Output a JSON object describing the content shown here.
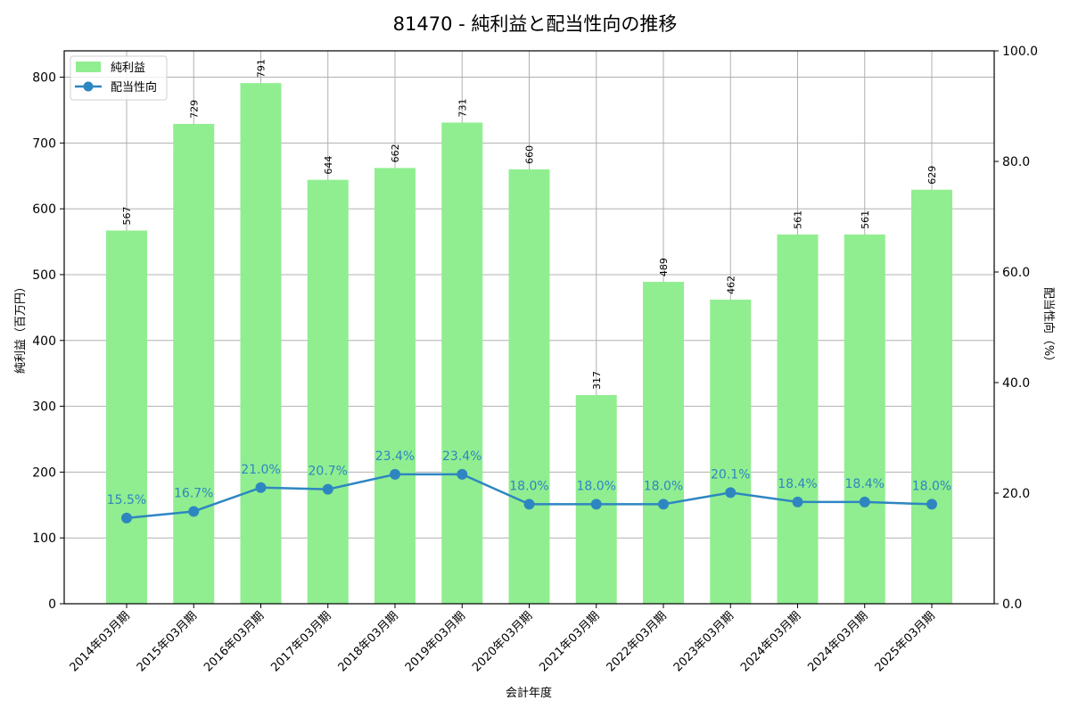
{
  "title": "81470 - 純利益と配当性向の推移",
  "colors": {
    "bar": "#90ee90",
    "line": "#2e86c1",
    "grid": "#b0b0b0",
    "axis": "#000000",
    "text": "#000000"
  },
  "legend": {
    "items": [
      {
        "label": "純利益",
        "type": "bar"
      },
      {
        "label": "配当性向",
        "type": "line"
      }
    ]
  },
  "axes": {
    "xlabel": "会計年度",
    "ylabel_left": "純利益（百万円）",
    "ylabel_right": "配当性向（%）",
    "left_ticks": [
      "0",
      "100",
      "200",
      "300",
      "400",
      "500",
      "600",
      "700",
      "800"
    ],
    "right_ticks": [
      "0.0",
      "20.0",
      "40.0",
      "60.0",
      "80.0",
      "100.0"
    ]
  },
  "chart_data": {
    "type": "bar",
    "title": "81470 - 純利益と配当性向の推移",
    "xlabel": "会計年度",
    "ylabel": "純利益（百万円）",
    "ylabel_right": "配当性向（%）",
    "categories": [
      "2014年03月期",
      "2015年03月期",
      "2016年03月期",
      "2017年03月期",
      "2018年03月期",
      "2019年03月期",
      "2020年03月期",
      "2021年03月期",
      "2022年03月期",
      "2023年03月期",
      "2024年03月期",
      "2024年03月期",
      "2025年03月期"
    ],
    "series": [
      {
        "name": "純利益",
        "type": "bar",
        "axis": "left",
        "values": [
          567,
          729,
          791,
          644,
          662,
          731,
          660,
          317,
          489,
          462,
          561,
          561,
          629
        ],
        "labels": [
          "567",
          "729",
          "791",
          "644",
          "662",
          "731",
          "660",
          "317",
          "489",
          "462",
          "561",
          "561",
          "629"
        ]
      },
      {
        "name": "配当性向",
        "type": "line",
        "axis": "right",
        "values": [
          15.5,
          16.7,
          21.0,
          20.7,
          23.4,
          23.4,
          18.0,
          18.0,
          18.0,
          20.1,
          18.4,
          18.4,
          18.0
        ],
        "labels": [
          "15.5%",
          "16.7%",
          "21.0%",
          "20.7%",
          "23.4%",
          "23.4%",
          "18.0%",
          "18.0%",
          "18.0%",
          "20.1%",
          "18.4%",
          "18.4%",
          "18.0%"
        ]
      }
    ],
    "ylim": [
      0,
      840
    ],
    "ylim_right": [
      0,
      100
    ],
    "grid": true,
    "legend_position": "upper left"
  }
}
